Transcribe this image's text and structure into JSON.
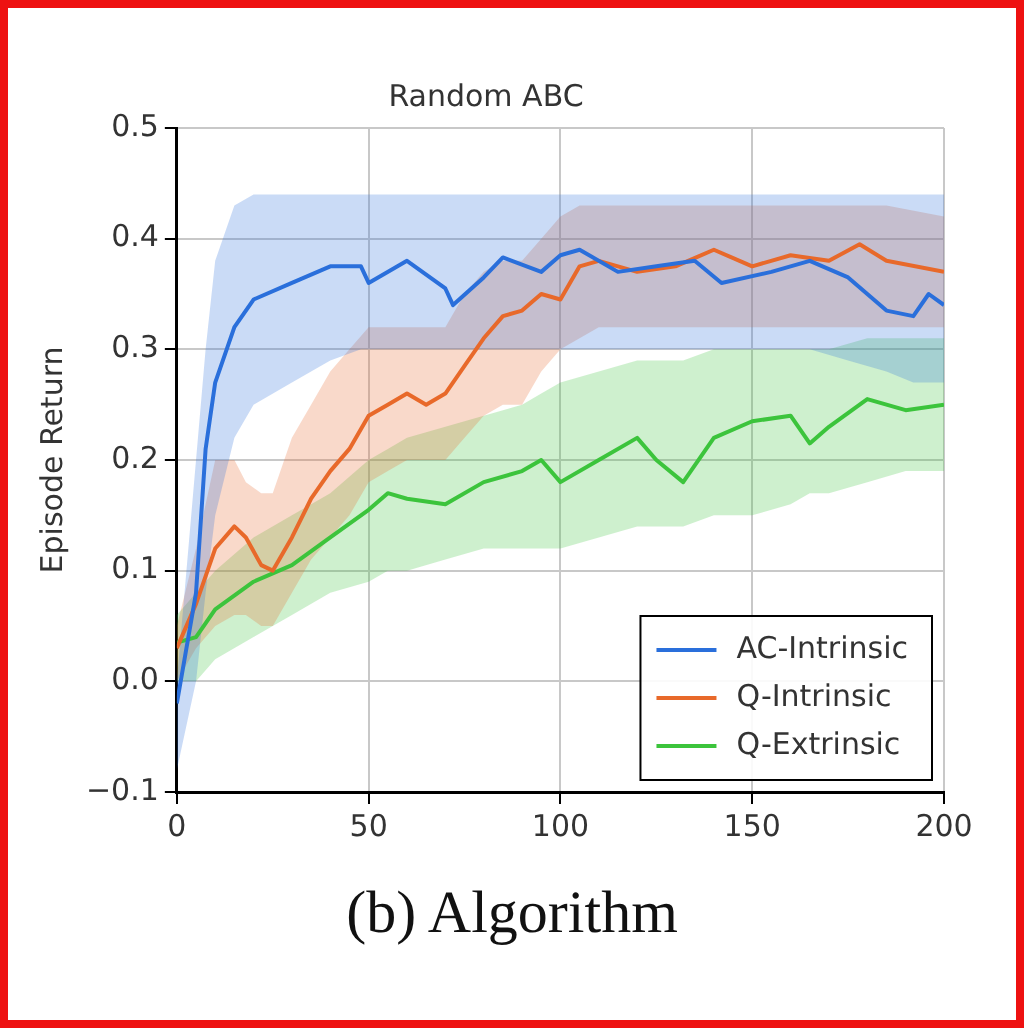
{
  "chart_data": {
    "type": "line",
    "title": "Random ABC",
    "ylabel": "Episode Return",
    "annotations": [
      "(b) Algorithm"
    ],
    "xlim": [
      0,
      200
    ],
    "xticks": [
      0,
      50,
      100,
      150,
      200
    ],
    "ylim": [
      -0.1,
      0.5
    ],
    "yticks": [
      {
        "value": -0.1,
        "label": "−0.1"
      },
      {
        "value": 0,
        "label": "0.0"
      },
      {
        "value": 0.1,
        "label": "0.1"
      },
      {
        "value": 0.2,
        "label": "0.2"
      },
      {
        "value": 0.3,
        "label": "0.3"
      },
      {
        "value": 0.4,
        "label": "0.4"
      },
      {
        "value": 0.5,
        "label": "0.5"
      }
    ],
    "grid": true,
    "legend": "bottom right",
    "marker": "none",
    "line_style": "solid",
    "series": [
      {
        "name": "AC-Intrinsic",
        "color": "#2a6fdb",
        "x": [
          0,
          5,
          7.5,
          10,
          15,
          20,
          30,
          40,
          48,
          50,
          60,
          70,
          72,
          80,
          85,
          95,
          100,
          105,
          115,
          125,
          135,
          142,
          155,
          165,
          175,
          185,
          192,
          196,
          200
        ],
        "values": [
          -0.02,
          0.08,
          0.21,
          0.27,
          0.32,
          0.345,
          0.36,
          0.375,
          0.375,
          0.36,
          0.38,
          0.355,
          0.34,
          0.365,
          0.383,
          0.37,
          0.385,
          0.39,
          0.37,
          0.375,
          0.38,
          0.36,
          0.37,
          0.38,
          0.365,
          0.335,
          0.33,
          0.35,
          0.34
        ],
        "upper": [
          0.0,
          0.2,
          0.3,
          0.38,
          0.43,
          0.44,
          0.44,
          0.44,
          0.44,
          0.44,
          0.44,
          0.44,
          0.44,
          0.44,
          0.44,
          0.44,
          0.44,
          0.44,
          0.44,
          0.44,
          0.44,
          0.44,
          0.44,
          0.44,
          0.44,
          0.44,
          0.44,
          0.44,
          0.44
        ],
        "lower": [
          -0.08,
          0.0,
          0.08,
          0.15,
          0.22,
          0.25,
          0.27,
          0.29,
          0.3,
          0.3,
          0.3,
          0.3,
          0.3,
          0.3,
          0.3,
          0.3,
          0.3,
          0.3,
          0.3,
          0.3,
          0.3,
          0.3,
          0.3,
          0.3,
          0.29,
          0.28,
          0.27,
          0.27,
          0.27
        ]
      },
      {
        "name": "Q-Intrinsic",
        "color": "#e8692a",
        "x": [
          0,
          5,
          10,
          15,
          18,
          22,
          25,
          30,
          35,
          40,
          45,
          50,
          55,
          60,
          65,
          70,
          75,
          80,
          85,
          90,
          95,
          100,
          105,
          110,
          120,
          130,
          140,
          150,
          160,
          170,
          178,
          185,
          200
        ],
        "values": [
          0.03,
          0.07,
          0.12,
          0.14,
          0.13,
          0.105,
          0.1,
          0.13,
          0.165,
          0.19,
          0.21,
          0.24,
          0.25,
          0.26,
          0.25,
          0.26,
          0.285,
          0.31,
          0.33,
          0.335,
          0.35,
          0.345,
          0.375,
          0.38,
          0.37,
          0.375,
          0.39,
          0.375,
          0.385,
          0.38,
          0.395,
          0.38,
          0.37
        ],
        "upper": [
          0.05,
          0.12,
          0.2,
          0.2,
          0.18,
          0.17,
          0.17,
          0.22,
          0.25,
          0.28,
          0.3,
          0.32,
          0.32,
          0.32,
          0.32,
          0.32,
          0.35,
          0.37,
          0.38,
          0.38,
          0.4,
          0.42,
          0.43,
          0.43,
          0.43,
          0.43,
          0.43,
          0.43,
          0.43,
          0.43,
          0.43,
          0.43,
          0.42
        ],
        "lower": [
          0.0,
          0.03,
          0.05,
          0.06,
          0.06,
          0.05,
          0.05,
          0.08,
          0.11,
          0.13,
          0.15,
          0.18,
          0.19,
          0.2,
          0.2,
          0.2,
          0.22,
          0.24,
          0.25,
          0.25,
          0.28,
          0.3,
          0.31,
          0.32,
          0.32,
          0.32,
          0.32,
          0.32,
          0.32,
          0.32,
          0.32,
          0.32,
          0.32
        ]
      },
      {
        "name": "Q-Extrinsic",
        "color": "#3cc43c",
        "x": [
          0,
          5,
          10,
          20,
          30,
          40,
          50,
          55,
          60,
          70,
          80,
          90,
          95,
          100,
          110,
          120,
          125,
          132,
          140,
          150,
          160,
          165,
          170,
          180,
          190,
          200
        ],
        "values": [
          0.035,
          0.04,
          0.065,
          0.09,
          0.105,
          0.13,
          0.155,
          0.17,
          0.165,
          0.16,
          0.18,
          0.19,
          0.2,
          0.18,
          0.2,
          0.22,
          0.2,
          0.18,
          0.22,
          0.235,
          0.24,
          0.215,
          0.23,
          0.255,
          0.245,
          0.25
        ],
        "upper": [
          0.06,
          0.08,
          0.1,
          0.13,
          0.15,
          0.17,
          0.2,
          0.21,
          0.22,
          0.23,
          0.24,
          0.25,
          0.26,
          0.27,
          0.28,
          0.29,
          0.29,
          0.29,
          0.3,
          0.3,
          0.3,
          0.3,
          0.3,
          0.31,
          0.31,
          0.31
        ],
        "lower": [
          0.0,
          0.0,
          0.02,
          0.04,
          0.06,
          0.08,
          0.09,
          0.1,
          0.1,
          0.11,
          0.12,
          0.12,
          0.12,
          0.12,
          0.13,
          0.14,
          0.14,
          0.14,
          0.15,
          0.15,
          0.16,
          0.17,
          0.17,
          0.18,
          0.19,
          0.19
        ]
      }
    ]
  }
}
